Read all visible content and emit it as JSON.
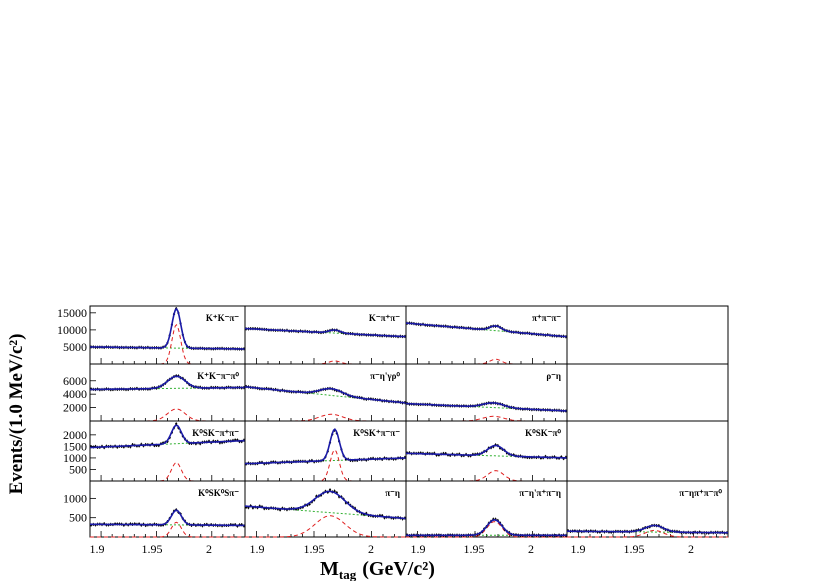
{
  "figure": {
    "ylabel": "Events/(1.0 MeV/c²)",
    "xlabel_main": "M",
    "xlabel_sub": "tag",
    "xlabel_unit": "(GeV/c²)",
    "xticks": [
      "1.9",
      "1.95",
      "2",
      "1.9",
      "1.95",
      "2",
      "1.9",
      "1.95",
      "2",
      "1.9",
      "1.95",
      "2"
    ]
  },
  "colors": {
    "data": "#000000",
    "fit": "#1a1aa8",
    "signal": "#e02020",
    "background": "#30b030"
  },
  "chart_data": [
    {
      "type": "line",
      "label": "K⁺K⁻π⁻",
      "xlim": [
        1.89,
        2.03
      ],
      "ylim": [
        0,
        17000
      ],
      "yticks": [
        5000,
        10000,
        15000
      ],
      "ytick_labels": [
        "5000",
        "10000",
        "15000"
      ],
      "peak": 1.968,
      "width": 0.004,
      "signal_amplitude": 11500,
      "bkg_start": 5000,
      "bkg_end": 4400
    },
    {
      "type": "line",
      "label": "K⁻π⁺π⁻",
      "xlim": [
        1.89,
        2.03
      ],
      "ylim": [
        0,
        17000
      ],
      "yticks": [],
      "ytick_labels": [],
      "peak": 1.968,
      "width": 0.005,
      "signal_amplitude": 900,
      "bkg_start": 10400,
      "bkg_end": 8000
    },
    {
      "type": "line",
      "label": "π⁺π⁻π⁻",
      "xlim": [
        1.89,
        2.03
      ],
      "ylim": [
        0,
        17000
      ],
      "yticks": [],
      "ytick_labels": [],
      "peak": 1.968,
      "width": 0.005,
      "signal_amplitude": 1400,
      "bkg_start": 12000,
      "bkg_end": 8000
    },
    {
      "type": "empty"
    },
    {
      "type": "line",
      "label": "K⁺K⁻π⁻π⁰",
      "xlim": [
        1.89,
        2.03
      ],
      "ylim": [
        0,
        8500
      ],
      "yticks": [
        2000,
        4000,
        6000
      ],
      "ytick_labels": [
        "2000",
        "4000",
        "6000"
      ],
      "peak": 1.968,
      "width": 0.008,
      "signal_amplitude": 1800,
      "bkg_start": 4700,
      "bkg_end": 5000
    },
    {
      "type": "line",
      "label": "π⁻η'γρ⁰",
      "xlim": [
        1.89,
        2.03
      ],
      "ylim": [
        0,
        8500
      ],
      "yticks": [],
      "ytick_labels": [],
      "peak": 1.965,
      "width": 0.01,
      "signal_amplitude": 1000,
      "bkg_start": 5100,
      "bkg_end": 2700
    },
    {
      "type": "line",
      "label": "ρ⁻η",
      "xlim": [
        1.89,
        2.03
      ],
      "ylim": [
        0,
        8500
      ],
      "yticks": [],
      "ytick_labels": [],
      "peak": 1.966,
      "width": 0.009,
      "signal_amplitude": 700,
      "bkg_start": 2600,
      "bkg_end": 1500
    },
    {
      "type": "empty"
    },
    {
      "type": "line",
      "label": "K⁰SK⁻π⁺π⁻",
      "xlim": [
        1.89,
        2.03
      ],
      "ylim": [
        0,
        2600
      ],
      "yticks": [
        500,
        1000,
        1500,
        2000
      ],
      "ytick_labels": [
        "500",
        "1000",
        "1500",
        "2000"
      ],
      "peak": 1.968,
      "width": 0.0045,
      "signal_amplitude": 800,
      "bkg_start": 1450,
      "bkg_end": 1750
    },
    {
      "type": "line",
      "label": "K⁰SK⁺π⁻π⁻",
      "xlim": [
        1.89,
        2.03
      ],
      "ylim": [
        0,
        2600
      ],
      "yticks": [],
      "ytick_labels": [],
      "peak": 1.968,
      "width": 0.004,
      "signal_amplitude": 1350,
      "bkg_start": 750,
      "bkg_end": 1000
    },
    {
      "type": "line",
      "label": "K⁰SK⁻π⁰",
      "xlim": [
        1.89,
        2.03
      ],
      "ylim": [
        0,
        2600
      ],
      "yticks": [],
      "ytick_labels": [],
      "peak": 1.968,
      "width": 0.007,
      "signal_amplitude": 450,
      "bkg_start": 1200,
      "bkg_end": 1000
    },
    {
      "type": "empty"
    },
    {
      "type": "line",
      "label": "K⁰SK⁰Sπ⁻",
      "xlim": [
        1.89,
        2.03
      ],
      "ylim": [
        0,
        1450
      ],
      "yticks": [
        500,
        1000
      ],
      "ytick_labels": [
        "500",
        "1000"
      ],
      "peak": 1.968,
      "width": 0.0045,
      "signal_amplitude": 380,
      "bkg_start": 330,
      "bkg_end": 300
    },
    {
      "type": "line",
      "label": "π⁻η",
      "xlim": [
        1.89,
        2.03
      ],
      "ylim": [
        0,
        1450
      ],
      "yticks": [],
      "ytick_labels": [],
      "peak": 1.964,
      "width": 0.013,
      "signal_amplitude": 550,
      "bkg_start": 800,
      "bkg_end": 480
    },
    {
      "type": "line",
      "label": "π⁻η'π⁺π⁻η",
      "xlim": [
        1.89,
        2.03
      ],
      "ylim": [
        0,
        1450
      ],
      "yticks": [],
      "ytick_labels": [],
      "peak": 1.967,
      "width": 0.0065,
      "signal_amplitude": 400,
      "bkg_start": 45,
      "bkg_end": 45
    },
    {
      "type": "line",
      "label": "π⁻ηπ⁺π⁻π⁰",
      "xlim": [
        1.89,
        2.03
      ],
      "ylim": [
        0,
        1450
      ],
      "yticks": [],
      "ytick_labels": [],
      "peak": 1.966,
      "width": 0.008,
      "signal_amplitude": 170,
      "bkg_start": 150,
      "bkg_end": 110
    }
  ]
}
